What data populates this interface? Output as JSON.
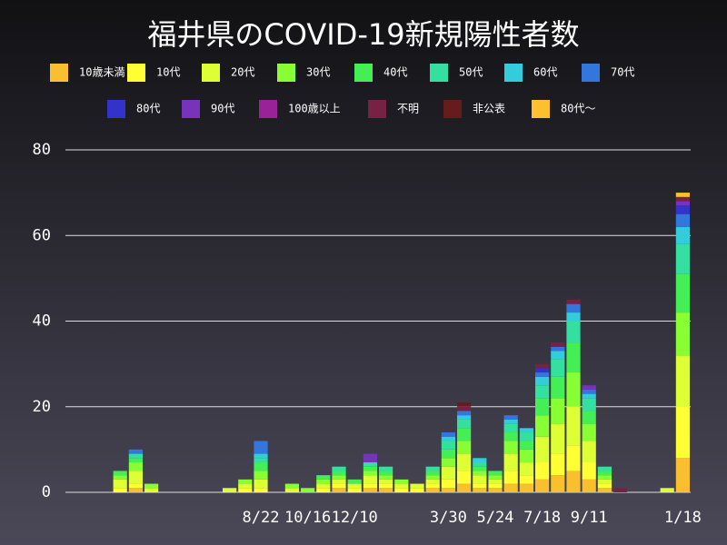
{
  "chart_data": {
    "type": "stacked_bar",
    "title": "福井県のCOVID-19新規陽性者数",
    "categories": [
      null,
      null,
      null,
      null,
      null,
      null,
      null,
      null,
      null,
      null,
      null,
      null,
      "8/22",
      null,
      null,
      "10/16",
      null,
      null,
      "12/10",
      null,
      null,
      null,
      null,
      null,
      "3/30",
      null,
      null,
      "5/24",
      null,
      null,
      "7/18",
      null,
      null,
      "9/11",
      null,
      null,
      null,
      null,
      null,
      "1/18"
    ],
    "ylim": [
      0,
      80
    ],
    "yticks": [
      0,
      20,
      40,
      60,
      80
    ],
    "grid": true,
    "series": [
      {
        "name": "10歳未満",
        "color": "#f9bf2e",
        "values": [
          0,
          0,
          0,
          0,
          1,
          0,
          0,
          0,
          0,
          0,
          0,
          0,
          0,
          0,
          0,
          0,
          0,
          1,
          0,
          1,
          1,
          0,
          0,
          1,
          1,
          2,
          1,
          1,
          2,
          2,
          3,
          4,
          5,
          3,
          1,
          0,
          0,
          0,
          0,
          8
        ]
      },
      {
        "name": "10代",
        "color": "#ffff33",
        "values": [
          0,
          0,
          0,
          1,
          1,
          0,
          0,
          0,
          0,
          0,
          0,
          1,
          1,
          0,
          0,
          0,
          1,
          1,
          1,
          1,
          1,
          1,
          1,
          1,
          2,
          3,
          1,
          1,
          3,
          2,
          4,
          5,
          6,
          4,
          1,
          0,
          0,
          0,
          0,
          12
        ]
      },
      {
        "name": "20代",
        "color": "#ddff33",
        "values": [
          0,
          0,
          0,
          2,
          3,
          1,
          0,
          0,
          0,
          0,
          1,
          1,
          2,
          0,
          1,
          0,
          1,
          1,
          1,
          2,
          1,
          1,
          1,
          1,
          3,
          4,
          2,
          1,
          4,
          3,
          6,
          7,
          9,
          5,
          1,
          0,
          0,
          0,
          1,
          12
        ]
      },
      {
        "name": "30代",
        "color": "#88ff33",
        "values": [
          0,
          0,
          0,
          1,
          2,
          1,
          0,
          0,
          0,
          0,
          0,
          1,
          2,
          0,
          1,
          1,
          1,
          1,
          0,
          1,
          1,
          1,
          0,
          1,
          2,
          3,
          1,
          1,
          3,
          3,
          5,
          6,
          8,
          4,
          1,
          0,
          0,
          0,
          0,
          10
        ]
      },
      {
        "name": "40代",
        "color": "#44ee55",
        "values": [
          0,
          0,
          0,
          1,
          1,
          0,
          0,
          0,
          0,
          0,
          0,
          0,
          2,
          0,
          0,
          0,
          1,
          1,
          1,
          1,
          1,
          0,
          0,
          1,
          2,
          3,
          1,
          1,
          2,
          2,
          4,
          5,
          7,
          3,
          1,
          0,
          0,
          0,
          0,
          9
        ]
      },
      {
        "name": "50代",
        "color": "#33e0a0",
        "values": [
          0,
          0,
          0,
          0,
          1,
          0,
          0,
          0,
          0,
          0,
          0,
          0,
          1,
          0,
          0,
          0,
          0,
          1,
          0,
          1,
          1,
          0,
          0,
          1,
          2,
          2,
          1,
          0,
          2,
          2,
          3,
          4,
          5,
          3,
          1,
          0,
          0,
          0,
          0,
          7
        ]
      },
      {
        "name": "60代",
        "color": "#33ccdd",
        "values": [
          0,
          0,
          0,
          0,
          0,
          0,
          0,
          0,
          0,
          0,
          0,
          0,
          1,
          0,
          0,
          0,
          0,
          0,
          0,
          0,
          0,
          0,
          0,
          0,
          1,
          1,
          1,
          0,
          1,
          1,
          2,
          2,
          2,
          1,
          0,
          0,
          0,
          0,
          0,
          4
        ]
      },
      {
        "name": "70代",
        "color": "#3377dd",
        "values": [
          0,
          0,
          0,
          0,
          1,
          0,
          0,
          0,
          0,
          0,
          0,
          0,
          3,
          0,
          0,
          0,
          0,
          0,
          0,
          0,
          0,
          0,
          0,
          0,
          1,
          1,
          0,
          0,
          1,
          0,
          1,
          1,
          2,
          1,
          0,
          0,
          0,
          0,
          0,
          3
        ]
      },
      {
        "name": "80代",
        "color": "#3333cc",
        "values": [
          0,
          0,
          0,
          0,
          0,
          0,
          0,
          0,
          0,
          0,
          0,
          0,
          0,
          0,
          0,
          0,
          0,
          0,
          0,
          0,
          0,
          0,
          0,
          0,
          0,
          0,
          0,
          0,
          0,
          0,
          1,
          0,
          0,
          0,
          0,
          0,
          0,
          0,
          0,
          2
        ]
      },
      {
        "name": "90代",
        "color": "#7733bb",
        "values": [
          0,
          0,
          0,
          0,
          0,
          0,
          0,
          0,
          0,
          0,
          0,
          0,
          0,
          0,
          0,
          0,
          0,
          0,
          0,
          2,
          0,
          0,
          0,
          0,
          0,
          0,
          0,
          0,
          0,
          0,
          0,
          0,
          0,
          1,
          0,
          0,
          0,
          0,
          0,
          1
        ]
      },
      {
        "name": "100歳以上",
        "color": "#992299",
        "values": [
          0,
          0,
          0,
          0,
          0,
          0,
          0,
          0,
          0,
          0,
          0,
          0,
          0,
          0,
          0,
          0,
          0,
          0,
          0,
          0,
          0,
          0,
          0,
          0,
          0,
          0,
          0,
          0,
          0,
          0,
          0,
          0,
          0,
          0,
          0,
          0,
          0,
          0,
          0,
          0
        ]
      },
      {
        "name": "不明",
        "color": "#772244",
        "values": [
          0,
          0,
          0,
          0,
          0,
          0,
          0,
          0,
          0,
          0,
          0,
          0,
          0,
          0,
          0,
          0,
          0,
          0,
          0,
          0,
          0,
          0,
          0,
          0,
          0,
          1,
          0,
          0,
          0,
          0,
          1,
          1,
          1,
          0,
          0,
          1,
          0,
          0,
          0,
          1
        ]
      },
      {
        "name": "非公表",
        "color": "#661c1c",
        "values": [
          0,
          0,
          0,
          0,
          0,
          0,
          0,
          0,
          0,
          0,
          0,
          0,
          0,
          0,
          0,
          0,
          0,
          0,
          0,
          0,
          0,
          0,
          0,
          0,
          0,
          1,
          0,
          0,
          0,
          0,
          0,
          0,
          0,
          0,
          0,
          0,
          0,
          0,
          0,
          0
        ]
      },
      {
        "name": "80代〜",
        "color": "#ffc030",
        "values": [
          0,
          0,
          0,
          0,
          0,
          0,
          0,
          0,
          0,
          0,
          0,
          0,
          0,
          0,
          0,
          0,
          0,
          0,
          0,
          0,
          0,
          0,
          0,
          0,
          0,
          0,
          0,
          0,
          0,
          0,
          0,
          0,
          0,
          0,
          0,
          0,
          0,
          0,
          0,
          1
        ]
      }
    ]
  }
}
